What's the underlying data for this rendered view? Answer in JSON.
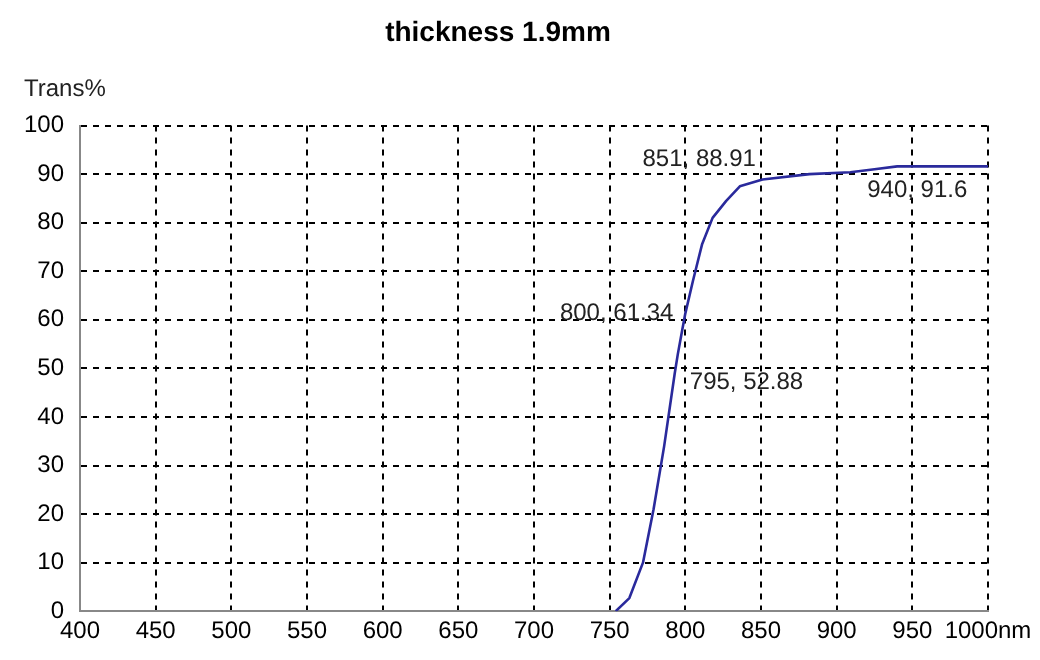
{
  "chart_data": {
    "type": "line",
    "title": "thickness 1.9mm",
    "ylabel": "Trans%",
    "series": [
      {
        "color": "#2a2a9c",
        "x": [
          754,
          763,
          772,
          779,
          786,
          793,
          795,
          798,
          800,
          805,
          811,
          818,
          827,
          836,
          851,
          882,
          909,
          925,
          940,
          1000
        ],
        "values": [
          0,
          2.7,
          10,
          21,
          34,
          49,
          52.88,
          58,
          61.34,
          68,
          75.5,
          81,
          84.5,
          87.5,
          88.91,
          90,
          90.4,
          91,
          91.6,
          91.6
        ]
      }
    ],
    "xlim": [
      400,
      1000
    ],
    "xticks": [
      400,
      450,
      500,
      550,
      600,
      650,
      700,
      750,
      800,
      850,
      900,
      950,
      {
        "value": 1000,
        "label": "1000nm"
      }
    ],
    "ylim": [
      0,
      100
    ],
    "yticks": [
      0,
      10,
      20,
      30,
      40,
      50,
      60,
      70,
      80,
      90,
      100
    ],
    "grid": true,
    "legend": false,
    "marker": "none",
    "line_style": "solid",
    "annotations": [
      {
        "text": "851, 88.91",
        "x": 851,
        "y": 88.91
      },
      {
        "text": "940, 91.6",
        "x": 940,
        "y": 91.6
      },
      {
        "text": "800, 61.34",
        "x": 800,
        "y": 61.34
      },
      {
        "text": "795, 52.88",
        "x": 795,
        "y": 52.88
      }
    ]
  }
}
